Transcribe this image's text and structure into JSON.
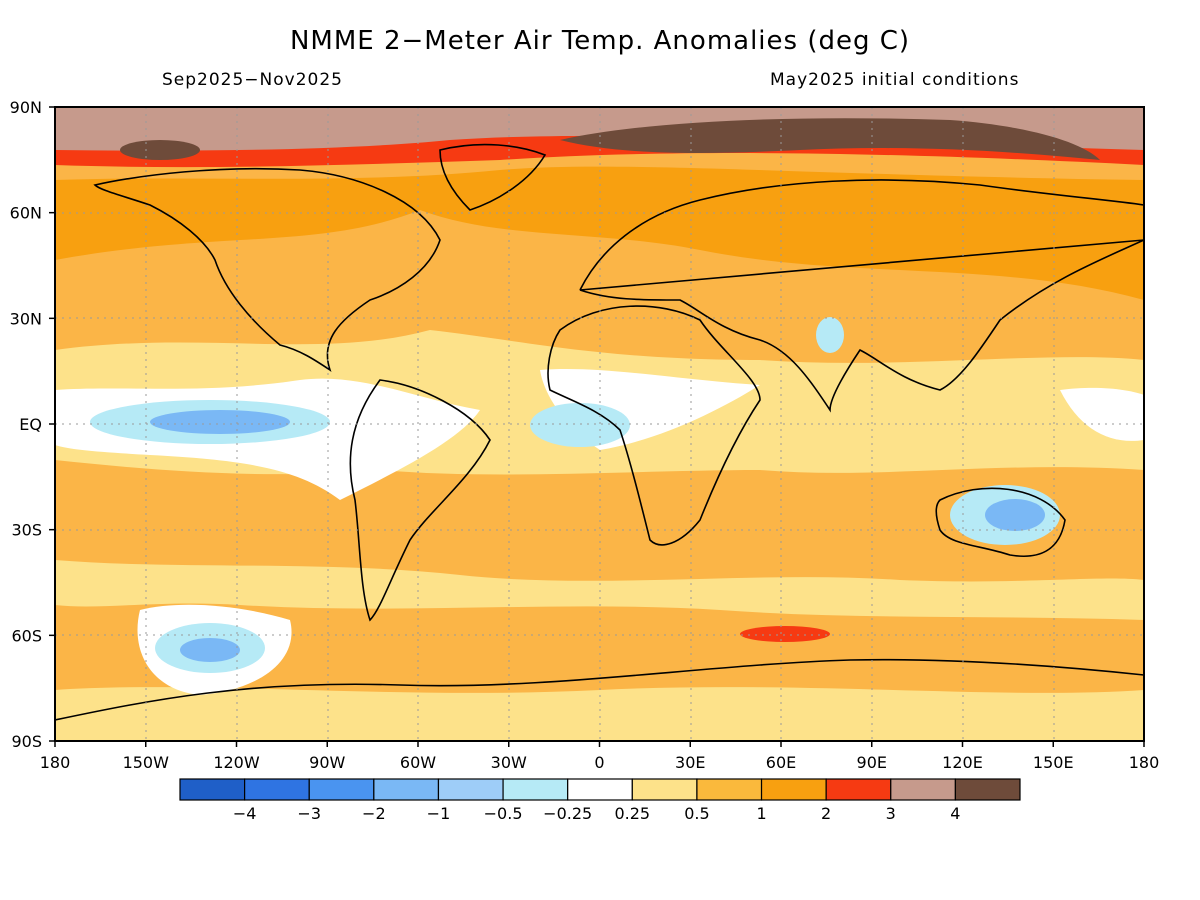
{
  "header": {
    "title": "NMME 2−Meter Air Temp. Anomalies (deg C)",
    "period": "Sep2025−Nov2025",
    "init": "May2025 initial conditions"
  },
  "axes": {
    "lat_labels": [
      "90N",
      "60N",
      "30N",
      "EQ",
      "30S",
      "60S",
      "90S"
    ],
    "lon_labels": [
      "180",
      "150W",
      "120W",
      "90W",
      "60W",
      "30W",
      "0",
      "30E",
      "60E",
      "90E",
      "120E",
      "150E",
      "180"
    ]
  },
  "colorbar": {
    "colors": [
      "#1f5fc8",
      "#2f74e2",
      "#4a94f0",
      "#7ab8f5",
      "#9ecdf8",
      "#b6eaf6",
      "#ffffff",
      "#fde28a",
      "#fab93c",
      "#f8a010",
      "#f63a12",
      "#c69a8c",
      "#6e4b3a"
    ],
    "labels": [
      "−4",
      "−3",
      "−2",
      "−1",
      "−0.5",
      "−0.25",
      "0.25",
      "0.5",
      "1",
      "2",
      "3",
      "4"
    ]
  },
  "map": {
    "background_color": "#fbb547",
    "gridline_color": "#9a9a9a"
  }
}
